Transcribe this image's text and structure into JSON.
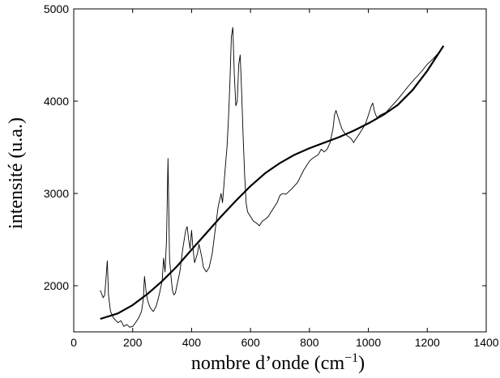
{
  "chart_data": {
    "type": "line",
    "title": "",
    "xlabel": "nombre d’onde (cm",
    "xlabel_sup": "−1",
    "xlabel_close": ")",
    "ylabel": "intensité (u.a.)",
    "xlim": [
      0,
      1400
    ],
    "ylim": [
      1500,
      5000
    ],
    "xticks": [
      0,
      200,
      400,
      600,
      800,
      1000,
      1200,
      1400
    ],
    "yticks": [
      2000,
      3000,
      4000,
      5000
    ],
    "grid": false,
    "legend": "none",
    "series": [
      {
        "style": "spectrum",
        "color": "#000000",
        "x": [
          90,
          100,
          105,
          110,
          114,
          118,
          125,
          135,
          150,
          160,
          170,
          180,
          190,
          200,
          210,
          220,
          230,
          236,
          240,
          245,
          250,
          255,
          260,
          270,
          280,
          290,
          300,
          305,
          310,
          315,
          320,
          325,
          330,
          335,
          340,
          345,
          350,
          360,
          370,
          380,
          385,
          390,
          395,
          400,
          405,
          410,
          420,
          425,
          430,
          435,
          440,
          450,
          460,
          470,
          480,
          490,
          500,
          505,
          510,
          515,
          520,
          525,
          530,
          535,
          540,
          545,
          550,
          555,
          560,
          565,
          570,
          575,
          580,
          585,
          590,
          600,
          610,
          620,
          630,
          640,
          650,
          660,
          670,
          680,
          690,
          700,
          710,
          720,
          740,
          760,
          780,
          800,
          810,
          820,
          830,
          840,
          850,
          860,
          870,
          880,
          885,
          890,
          895,
          900,
          905,
          910,
          920,
          930,
          940,
          950,
          955,
          960,
          970,
          980,
          990,
          1000,
          1010,
          1015,
          1020,
          1025,
          1030,
          1040,
          1060,
          1080,
          1100,
          1120,
          1140,
          1160,
          1180,
          1200,
          1220,
          1240,
          1255
        ],
        "y": [
          1950,
          1870,
          1900,
          2100,
          2270,
          1900,
          1720,
          1650,
          1600,
          1620,
          1560,
          1580,
          1550,
          1560,
          1600,
          1650,
          1720,
          1850,
          2100,
          1950,
          1850,
          1800,
          1760,
          1720,
          1780,
          1900,
          2050,
          2300,
          2150,
          2500,
          3380,
          2300,
          2100,
          1950,
          1900,
          1920,
          2000,
          2150,
          2400,
          2600,
          2640,
          2500,
          2400,
          2600,
          2400,
          2250,
          2350,
          2450,
          2380,
          2300,
          2200,
          2150,
          2200,
          2350,
          2600,
          2850,
          3000,
          2900,
          3100,
          3300,
          3500,
          3800,
          4200,
          4700,
          4800,
          4300,
          3950,
          4000,
          4400,
          4500,
          4100,
          3600,
          3200,
          2900,
          2800,
          2750,
          2700,
          2680,
          2650,
          2700,
          2720,
          2750,
          2800,
          2850,
          2900,
          2980,
          3000,
          2990,
          3050,
          3120,
          3250,
          3350,
          3380,
          3400,
          3420,
          3480,
          3450,
          3480,
          3550,
          3700,
          3850,
          3900,
          3850,
          3800,
          3750,
          3700,
          3650,
          3620,
          3600,
          3550,
          3580,
          3600,
          3650,
          3700,
          3750,
          3850,
          3950,
          3980,
          3900,
          3850,
          3820,
          3850,
          3880,
          3950,
          4020,
          4100,
          4180,
          4250,
          4320,
          4400,
          4460,
          4530,
          4590
        ]
      },
      {
        "style": "fit",
        "color": "#000000",
        "x": [
          90,
          150,
          200,
          250,
          300,
          350,
          400,
          450,
          500,
          550,
          600,
          650,
          700,
          750,
          800,
          850,
          900,
          950,
          1000,
          1050,
          1100,
          1150,
          1200,
          1255
        ],
        "y": [
          1640,
          1700,
          1790,
          1910,
          2050,
          2210,
          2390,
          2570,
          2750,
          2920,
          3080,
          3220,
          3330,
          3420,
          3490,
          3550,
          3610,
          3680,
          3760,
          3850,
          3960,
          4120,
          4330,
          4600
        ]
      }
    ]
  }
}
